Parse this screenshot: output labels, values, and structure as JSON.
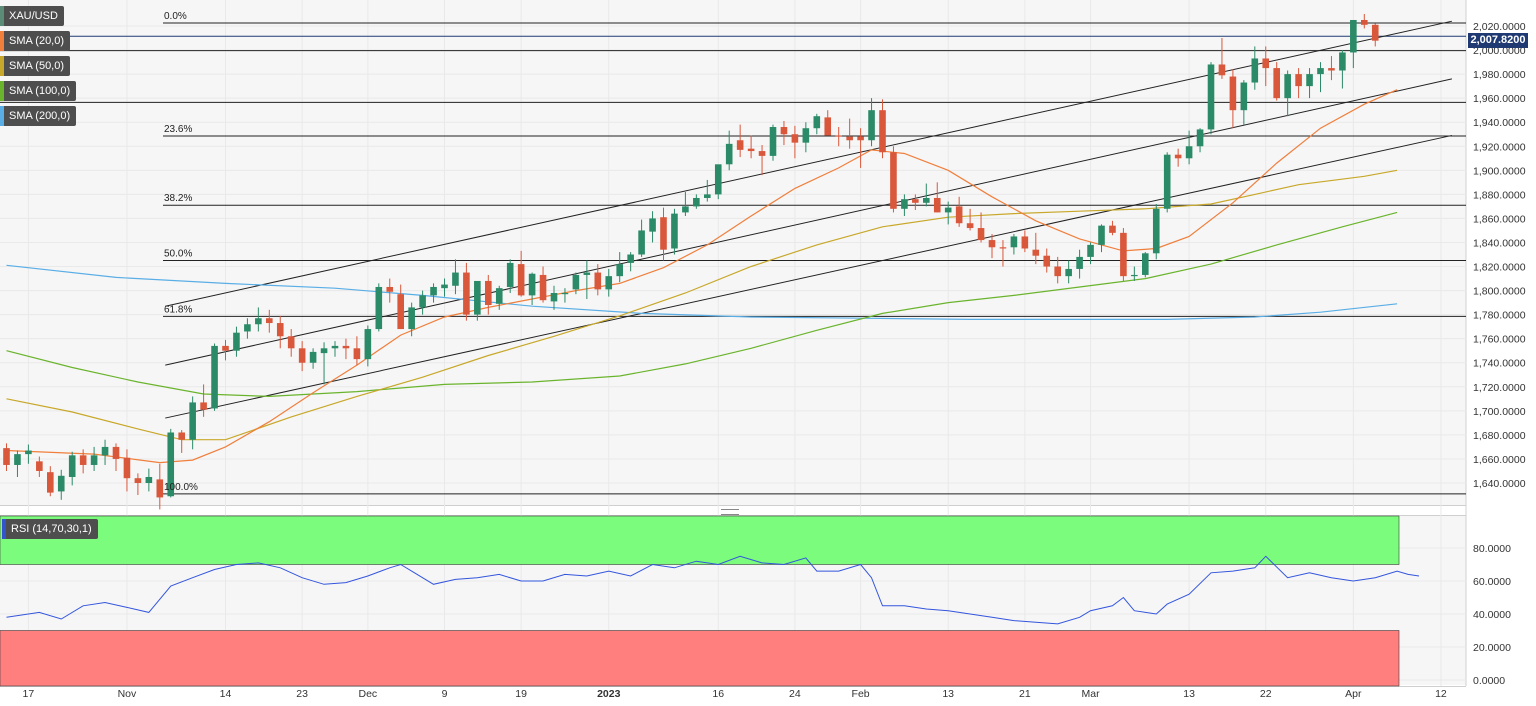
{
  "chart_data": {
    "type": "candlestick",
    "symbol": "XAU/USD",
    "last_price_label": "2,007.8200",
    "indicators": [
      {
        "name": "SMA (20,0)",
        "color": "#f07f3c"
      },
      {
        "name": "SMA (50,0)",
        "color": "#c8a82a"
      },
      {
        "name": "SMA (100,0)",
        "color": "#6ab42d"
      },
      {
        "name": "SMA (200,0)",
        "color": "#5aaee6"
      }
    ],
    "rsi_label": "RSI (14,70,30,1)",
    "ylim": [
      1620,
      2030
    ],
    "y_ticks": [
      1640,
      1660,
      1680,
      1700,
      1720,
      1740,
      1760,
      1780,
      1800,
      1820,
      1840,
      1860,
      1880,
      1900,
      1920,
      1940,
      1960,
      1980,
      2000,
      2020
    ],
    "y_tick_labels": [
      "1,640.0000",
      "1,660.0000",
      "1,680.0000",
      "1,700.0000",
      "1,720.0000",
      "1,740.0000",
      "1,760.0000",
      "1,780.0000",
      "1,800.0000",
      "1,820.0000",
      "1,840.0000",
      "1,860.0000",
      "1,880.0000",
      "1,900.0000",
      "1,920.0000",
      "1,940.0000",
      "1,960.0000",
      "1,980.0000",
      "2,000.0000",
      "2,020.0000"
    ],
    "x_labels": [
      "17",
      "Nov",
      "14",
      "23",
      "Dec",
      "9",
      "19",
      "2023",
      "16",
      "24",
      "Feb",
      "13",
      "21",
      "Mar",
      "13",
      "22",
      "Apr",
      "12"
    ],
    "x_label_bars": [
      2,
      11,
      20,
      27,
      33,
      40,
      47,
      55,
      65,
      72,
      78,
      86,
      93,
      99,
      108,
      115,
      123,
      131
    ],
    "fib_levels": [
      {
        "label": "0.0%",
        "value": 2022.5
      },
      {
        "label": "23.6%",
        "value": 1928.5
      },
      {
        "label": "38.2%",
        "value": 1871.0
      },
      {
        "label": "50.0%",
        "value": 1825.0
      },
      {
        "label": "61.8%",
        "value": 1778.5
      },
      {
        "label": "100.0%",
        "value": 1631.0
      }
    ],
    "h_lines": [
      2011.5,
      1999.5,
      1956.5
    ],
    "channel_lines": [
      [
        [
          14.5,
          1787
        ],
        [
          132,
          2024
        ]
      ],
      [
        [
          14.5,
          1738
        ],
        [
          132,
          1976
        ]
      ],
      [
        [
          14.5,
          1694
        ],
        [
          132,
          1929
        ]
      ]
    ],
    "candles": [
      [
        1669,
        1673,
        1650,
        1655
      ],
      [
        1655,
        1667,
        1645,
        1664
      ],
      [
        1664,
        1672,
        1656,
        1667
      ],
      [
        1658,
        1662,
        1645,
        1650
      ],
      [
        1649,
        1654,
        1629,
        1632
      ],
      [
        1633,
        1651,
        1626,
        1646
      ],
      [
        1645,
        1666,
        1638,
        1663
      ],
      [
        1663,
        1668,
        1648,
        1655
      ],
      [
        1655,
        1670,
        1650,
        1663
      ],
      [
        1663,
        1676,
        1655,
        1670
      ],
      [
        1670,
        1673,
        1650,
        1660
      ],
      [
        1661,
        1668,
        1633,
        1644
      ],
      [
        1644,
        1648,
        1630,
        1640
      ],
      [
        1640,
        1652,
        1633,
        1645
      ],
      [
        1643,
        1656,
        1618,
        1628
      ],
      [
        1629,
        1685,
        1628,
        1682
      ],
      [
        1682,
        1684,
        1665,
        1676
      ],
      [
        1676,
        1712,
        1668,
        1707
      ],
      [
        1707,
        1722,
        1695,
        1701
      ],
      [
        1702,
        1756,
        1700,
        1754
      ],
      [
        1754,
        1759,
        1742,
        1750
      ],
      [
        1750,
        1770,
        1745,
        1765
      ],
      [
        1766,
        1777,
        1760,
        1772
      ],
      [
        1772,
        1786,
        1766,
        1777
      ],
      [
        1777,
        1784,
        1765,
        1773
      ],
      [
        1773,
        1779,
        1752,
        1762
      ],
      [
        1762,
        1768,
        1745,
        1752
      ],
      [
        1752,
        1758,
        1733,
        1740
      ],
      [
        1740,
        1752,
        1735,
        1749
      ],
      [
        1748,
        1757,
        1722,
        1752
      ],
      [
        1752,
        1758,
        1745,
        1754
      ],
      [
        1754,
        1760,
        1743,
        1752
      ],
      [
        1752,
        1762,
        1738,
        1743
      ],
      [
        1743,
        1771,
        1737,
        1768
      ],
      [
        1768,
        1806,
        1766,
        1803
      ],
      [
        1803,
        1810,
        1790,
        1799
      ],
      [
        1797,
        1805,
        1768,
        1768
      ],
      [
        1768,
        1790,
        1762,
        1786
      ],
      [
        1786,
        1800,
        1780,
        1796
      ],
      [
        1796,
        1806,
        1790,
        1803
      ],
      [
        1802,
        1810,
        1795,
        1805
      ],
      [
        1804,
        1826,
        1797,
        1815
      ],
      [
        1815,
        1823,
        1775,
        1780
      ],
      [
        1780,
        1804,
        1775,
        1808
      ],
      [
        1808,
        1813,
        1780,
        1788
      ],
      [
        1789,
        1804,
        1784,
        1802
      ],
      [
        1803,
        1826,
        1798,
        1823
      ],
      [
        1822,
        1833,
        1795,
        1796
      ],
      [
        1796,
        1815,
        1788,
        1814
      ],
      [
        1813,
        1820,
        1790,
        1792
      ],
      [
        1791,
        1804,
        1784,
        1798
      ],
      [
        1797,
        1802,
        1790,
        1798
      ],
      [
        1801,
        1815,
        1797,
        1813
      ],
      [
        1813,
        1825,
        1793,
        1815
      ],
      [
        1815,
        1822,
        1796,
        1801
      ],
      [
        1801,
        1818,
        1795,
        1812
      ],
      [
        1812,
        1832,
        1807,
        1822
      ],
      [
        1823,
        1832,
        1816,
        1830
      ],
      [
        1830,
        1859,
        1828,
        1850
      ],
      [
        1849,
        1866,
        1840,
        1860
      ],
      [
        1861,
        1869,
        1825,
        1834
      ],
      [
        1835,
        1868,
        1830,
        1864
      ],
      [
        1865,
        1882,
        1862,
        1870
      ],
      [
        1870,
        1880,
        1868,
        1877
      ],
      [
        1877,
        1892,
        1874,
        1880
      ],
      [
        1880,
        1904,
        1876,
        1905
      ],
      [
        1905,
        1933,
        1900,
        1922
      ],
      [
        1925,
        1938,
        1911,
        1917
      ],
      [
        1918,
        1929,
        1910,
        1916
      ],
      [
        1916,
        1921,
        1896,
        1912
      ],
      [
        1912,
        1938,
        1908,
        1936
      ],
      [
        1936,
        1941,
        1921,
        1930
      ],
      [
        1930,
        1937,
        1910,
        1923
      ],
      [
        1923,
        1940,
        1915,
        1935
      ],
      [
        1935,
        1947,
        1930,
        1945
      ],
      [
        1944,
        1950,
        1930,
        1929
      ],
      [
        1929,
        1936,
        1920,
        1928
      ],
      [
        1928,
        1943,
        1918,
        1925
      ],
      [
        1928,
        1935,
        1902,
        1925
      ],
      [
        1925,
        1960,
        1920,
        1950
      ],
      [
        1950,
        1959,
        1910,
        1915
      ],
      [
        1915,
        1920,
        1865,
        1868
      ],
      [
        1868,
        1880,
        1862,
        1876
      ],
      [
        1876,
        1880,
        1867,
        1873
      ],
      [
        1873,
        1889,
        1870,
        1877
      ],
      [
        1877,
        1890,
        1865,
        1865
      ],
      [
        1865,
        1874,
        1855,
        1869
      ],
      [
        1870,
        1878,
        1853,
        1856
      ],
      [
        1856,
        1868,
        1850,
        1852
      ],
      [
        1852,
        1865,
        1840,
        1842
      ],
      [
        1842,
        1847,
        1827,
        1836
      ],
      [
        1836,
        1842,
        1820,
        1835
      ],
      [
        1836,
        1847,
        1830,
        1845
      ],
      [
        1845,
        1850,
        1832,
        1835
      ],
      [
        1834,
        1848,
        1822,
        1829
      ],
      [
        1829,
        1835,
        1815,
        1820
      ],
      [
        1820,
        1828,
        1806,
        1812
      ],
      [
        1812,
        1825,
        1806,
        1818
      ],
      [
        1818,
        1834,
        1810,
        1828
      ],
      [
        1828,
        1840,
        1822,
        1838
      ],
      [
        1838,
        1855,
        1832,
        1854
      ],
      [
        1854,
        1858,
        1846,
        1848
      ],
      [
        1848,
        1852,
        1808,
        1812
      ],
      [
        1812,
        1820,
        1808,
        1813
      ],
      [
        1813,
        1832,
        1811,
        1831
      ],
      [
        1831,
        1872,
        1826,
        1868
      ],
      [
        1868,
        1915,
        1865,
        1913
      ],
      [
        1913,
        1918,
        1903,
        1910
      ],
      [
        1910,
        1933,
        1905,
        1920
      ],
      [
        1920,
        1935,
        1915,
        1934
      ],
      [
        1934,
        1990,
        1930,
        1988
      ],
      [
        1988,
        2010,
        1976,
        1979
      ],
      [
        1978,
        1984,
        1935,
        1950
      ],
      [
        1950,
        1975,
        1938,
        1973
      ],
      [
        1973,
        2003,
        1967,
        1993
      ],
      [
        1993,
        2003,
        1970,
        1985
      ],
      [
        1985,
        1990,
        1958,
        1960
      ],
      [
        1960,
        1983,
        1945,
        1980
      ],
      [
        1980,
        1985,
        1960,
        1970
      ],
      [
        1970,
        1985,
        1960,
        1980
      ],
      [
        1980,
        1990,
        1965,
        1985
      ],
      [
        1985,
        1995,
        1975,
        1983
      ],
      [
        1983,
        2000,
        1968,
        1998
      ],
      [
        1998,
        2025,
        1985,
        2025
      ],
      [
        2025,
        2030,
        2018,
        2021
      ],
      [
        2021,
        2022,
        2003,
        2007.8
      ]
    ],
    "sma20": [
      [
        0,
        1667
      ],
      [
        8,
        1664
      ],
      [
        14,
        1657
      ],
      [
        17,
        1659
      ],
      [
        20,
        1670
      ],
      [
        24,
        1691
      ],
      [
        28,
        1715
      ],
      [
        32,
        1738
      ],
      [
        36,
        1763
      ],
      [
        40,
        1778
      ],
      [
        44,
        1786
      ],
      [
        48,
        1793
      ],
      [
        52,
        1800
      ],
      [
        56,
        1806
      ],
      [
        60,
        1819
      ],
      [
        64,
        1838
      ],
      [
        68,
        1862
      ],
      [
        72,
        1885
      ],
      [
        76,
        1902
      ],
      [
        79,
        1917
      ],
      [
        82,
        1914
      ],
      [
        86,
        1900
      ],
      [
        90,
        1878
      ],
      [
        94,
        1858
      ],
      [
        98,
        1843
      ],
      [
        102,
        1833
      ],
      [
        105,
        1835
      ],
      [
        108,
        1845
      ],
      [
        112,
        1873
      ],
      [
        116,
        1906
      ],
      [
        120,
        1935
      ],
      [
        124,
        1955
      ],
      [
        127,
        1967
      ]
    ],
    "sma50": [
      [
        0,
        1710
      ],
      [
        6,
        1699
      ],
      [
        12,
        1685
      ],
      [
        16,
        1676
      ],
      [
        20,
        1676
      ],
      [
        26,
        1695
      ],
      [
        32,
        1712
      ],
      [
        38,
        1728
      ],
      [
        44,
        1746
      ],
      [
        50,
        1762
      ],
      [
        56,
        1779
      ],
      [
        62,
        1798
      ],
      [
        68,
        1820
      ],
      [
        74,
        1838
      ],
      [
        80,
        1853
      ],
      [
        86,
        1861
      ],
      [
        92,
        1864
      ],
      [
        98,
        1866
      ],
      [
        104,
        1868
      ],
      [
        110,
        1872
      ],
      [
        114,
        1880
      ],
      [
        118,
        1888
      ],
      [
        124,
        1895
      ],
      [
        127,
        1900
      ]
    ],
    "sma100": [
      [
        0,
        1750
      ],
      [
        6,
        1736
      ],
      [
        12,
        1724
      ],
      [
        18,
        1714
      ],
      [
        24,
        1712
      ],
      [
        32,
        1716
      ],
      [
        40,
        1722
      ],
      [
        48,
        1724
      ],
      [
        56,
        1729
      ],
      [
        62,
        1739
      ],
      [
        68,
        1752
      ],
      [
        74,
        1767
      ],
      [
        80,
        1781
      ],
      [
        86,
        1790
      ],
      [
        92,
        1796
      ],
      [
        98,
        1803
      ],
      [
        104,
        1810
      ],
      [
        110,
        1822
      ],
      [
        116,
        1838
      ],
      [
        122,
        1853
      ],
      [
        127,
        1865
      ]
    ],
    "sma200": [
      [
        0,
        1821
      ],
      [
        10,
        1811
      ],
      [
        20,
        1806
      ],
      [
        30,
        1802
      ],
      [
        38,
        1796
      ],
      [
        48,
        1787
      ],
      [
        58,
        1781
      ],
      [
        68,
        1778
      ],
      [
        78,
        1777
      ],
      [
        88,
        1776
      ],
      [
        98,
        1776
      ],
      [
        106,
        1776
      ],
      [
        114,
        1778
      ],
      [
        120,
        1782
      ],
      [
        127,
        1789
      ]
    ],
    "rsi": {
      "ylim": [
        0,
        100
      ],
      "overbought": 70,
      "oversold": 30,
      "tick_values": [
        0,
        20,
        40,
        60,
        80
      ],
      "tick_labels": [
        "0.0000",
        "20.0000",
        "40.0000",
        "60.0000",
        "80.0000"
      ],
      "points": [
        [
          0,
          38
        ],
        [
          3,
          41
        ],
        [
          5,
          37
        ],
        [
          7,
          45
        ],
        [
          9,
          47
        ],
        [
          11,
          44
        ],
        [
          13,
          41
        ],
        [
          15,
          57
        ],
        [
          17,
          62
        ],
        [
          19,
          67
        ],
        [
          21,
          70
        ],
        [
          23,
          71
        ],
        [
          25,
          68
        ],
        [
          27,
          62
        ],
        [
          29,
          58
        ],
        [
          31,
          59
        ],
        [
          33,
          63
        ],
        [
          35,
          68
        ],
        [
          36,
          70
        ],
        [
          37,
          66
        ],
        [
          39,
          58
        ],
        [
          41,
          61
        ],
        [
          43,
          62
        ],
        [
          45,
          64
        ],
        [
          47,
          60
        ],
        [
          49,
          60
        ],
        [
          51,
          64
        ],
        [
          53,
          63
        ],
        [
          55,
          66
        ],
        [
          57,
          63
        ],
        [
          59,
          70
        ],
        [
          61,
          68
        ],
        [
          63,
          72
        ],
        [
          65,
          70
        ],
        [
          67,
          75
        ],
        [
          69,
          71
        ],
        [
          71,
          70
        ],
        [
          73,
          74
        ],
        [
          74,
          66
        ],
        [
          76,
          66
        ],
        [
          78,
          70
        ],
        [
          79,
          62
        ],
        [
          80,
          45
        ],
        [
          82,
          45
        ],
        [
          84,
          43
        ],
        [
          86,
          42
        ],
        [
          88,
          40
        ],
        [
          90,
          38
        ],
        [
          92,
          36
        ],
        [
          94,
          35
        ],
        [
          96,
          34
        ],
        [
          98,
          38
        ],
        [
          99,
          42
        ],
        [
          101,
          45
        ],
        [
          102,
          50
        ],
        [
          103,
          42
        ],
        [
          105,
          40
        ],
        [
          106,
          46
        ],
        [
          108,
          52
        ],
        [
          110,
          65
        ],
        [
          112,
          66
        ],
        [
          114,
          68
        ],
        [
          115,
          75
        ],
        [
          117,
          62
        ],
        [
          119,
          65
        ],
        [
          121,
          62
        ],
        [
          123,
          60
        ],
        [
          125,
          62
        ],
        [
          127,
          66
        ],
        [
          128,
          64
        ],
        [
          129,
          63
        ]
      ]
    }
  }
}
